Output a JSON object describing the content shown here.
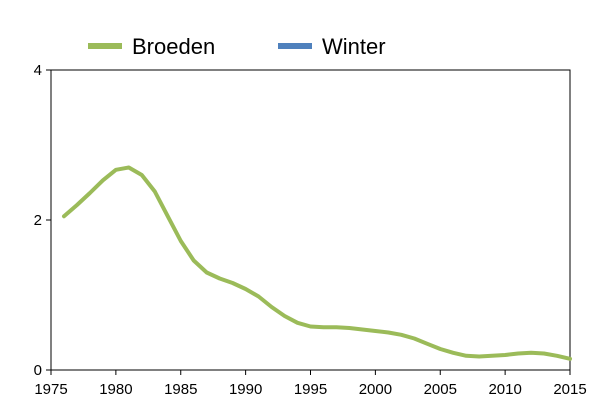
{
  "chart_data": {
    "type": "line",
    "title": "",
    "xlabel": "",
    "ylabel": "",
    "xlim": [
      1975,
      2015
    ],
    "ylim": [
      0,
      4
    ],
    "x_ticks": [
      1975,
      1980,
      1985,
      1990,
      1995,
      2000,
      2005,
      2010,
      2015
    ],
    "y_ticks": [
      0,
      2,
      4
    ],
    "grid": false,
    "legend_position": "top",
    "series": [
      {
        "name": "Broeden",
        "color": "#9bbb59",
        "x": [
          1976,
          1977,
          1978,
          1979,
          1980,
          1981,
          1982,
          1983,
          1984,
          1985,
          1986,
          1987,
          1988,
          1989,
          1990,
          1991,
          1992,
          1993,
          1994,
          1995,
          1996,
          1997,
          1998,
          1999,
          2000,
          2001,
          2002,
          2003,
          2004,
          2005,
          2006,
          2007,
          2008,
          2009,
          2010,
          2011,
          2012,
          2013,
          2014,
          2015
        ],
        "y": [
          2.05,
          2.2,
          2.36,
          2.53,
          2.67,
          2.7,
          2.6,
          2.38,
          2.05,
          1.72,
          1.46,
          1.3,
          1.22,
          1.16,
          1.08,
          0.98,
          0.84,
          0.72,
          0.63,
          0.58,
          0.57,
          0.57,
          0.56,
          0.54,
          0.52,
          0.5,
          0.47,
          0.42,
          0.35,
          0.28,
          0.23,
          0.19,
          0.18,
          0.19,
          0.2,
          0.22,
          0.23,
          0.22,
          0.19,
          0.15
        ]
      },
      {
        "name": "Winter",
        "color": "#4f81bd",
        "x": [],
        "y": []
      }
    ]
  }
}
